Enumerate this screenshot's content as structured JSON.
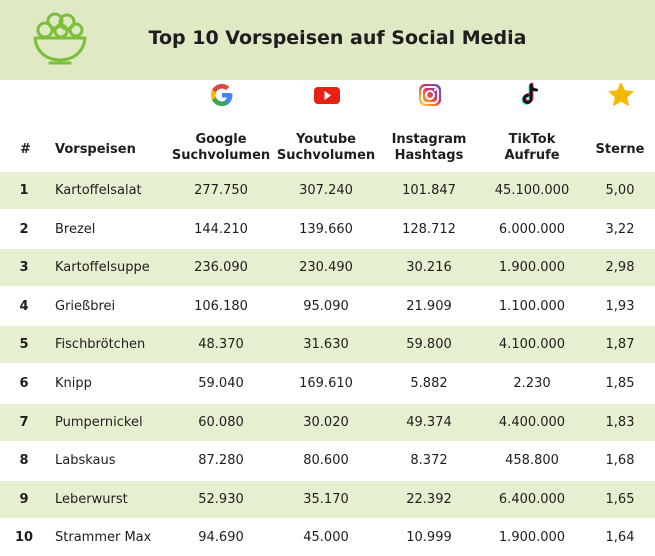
{
  "title": "Top 10 Vorspeisen auf Social Media",
  "icons": {
    "header": "salad-bowl-icon",
    "google": "google-icon",
    "youtube": "youtube-icon",
    "instagram": "instagram-icon",
    "tiktok": "tiktok-icon",
    "stars": "star-icon"
  },
  "colors": {
    "header_bg": "#dfe9c4",
    "row_shade": "#e7efd1",
    "logo_green": "#7cbf3a",
    "star": "#f5b800"
  },
  "chart_data": {
    "type": "table",
    "title": "Top 10 Vorspeisen auf Social Media",
    "columns": [
      {
        "label_1": "#",
        "label_2": ""
      },
      {
        "label_1": "Vorspeisen",
        "label_2": ""
      },
      {
        "label_1": "Google",
        "label_2": "Suchvolumen"
      },
      {
        "label_1": "Youtube",
        "label_2": "Suchvolumen"
      },
      {
        "label_1": "Instagram",
        "label_2": "Hashtags"
      },
      {
        "label_1": "TikTok",
        "label_2": "Aufrufe"
      },
      {
        "label_1": "Sterne",
        "label_2": ""
      }
    ],
    "rows": [
      {
        "rank": "1",
        "name": "Kartoffelsalat",
        "google": "277.750",
        "youtube": "307.240",
        "instagram": "101.847",
        "tiktok": "45.100.000",
        "stars": "5,00"
      },
      {
        "rank": "2",
        "name": "Brezel",
        "google": "144.210",
        "youtube": "139.660",
        "instagram": "128.712",
        "tiktok": "6.000.000",
        "stars": "3,22"
      },
      {
        "rank": "3",
        "name": "Kartoffelsuppe",
        "google": "236.090",
        "youtube": "230.490",
        "instagram": "30.216",
        "tiktok": "1.900.000",
        "stars": "2,98"
      },
      {
        "rank": "4",
        "name": "Grießbrei",
        "google": "106.180",
        "youtube": "95.090",
        "instagram": "21.909",
        "tiktok": "1.100.000",
        "stars": "1,93"
      },
      {
        "rank": "5",
        "name": "Fischbrötchen",
        "google": "48.370",
        "youtube": "31.630",
        "instagram": "59.800",
        "tiktok": "4.100.000",
        "stars": "1,87"
      },
      {
        "rank": "6",
        "name": "Knipp",
        "google": "59.040",
        "youtube": "169.610",
        "instagram": "5.882",
        "tiktok": "2.230",
        "stars": "1,85"
      },
      {
        "rank": "7",
        "name": "Pumpernickel",
        "google": "60.080",
        "youtube": "30.020",
        "instagram": "49.374",
        "tiktok": "4.400.000",
        "stars": "1,83"
      },
      {
        "rank": "8",
        "name": "Labskaus",
        "google": "87.280",
        "youtube": "80.600",
        "instagram": "8.372",
        "tiktok": "458.800",
        "stars": "1,68"
      },
      {
        "rank": "9",
        "name": "Leberwurst",
        "google": "52.930",
        "youtube": "35.170",
        "instagram": "22.392",
        "tiktok": "6.400.000",
        "stars": "1,65"
      },
      {
        "rank": "10",
        "name": "Strammer Max",
        "google": "94.690",
        "youtube": "45.000",
        "instagram": "10.999",
        "tiktok": "1.900.000",
        "stars": "1,64"
      }
    ]
  }
}
